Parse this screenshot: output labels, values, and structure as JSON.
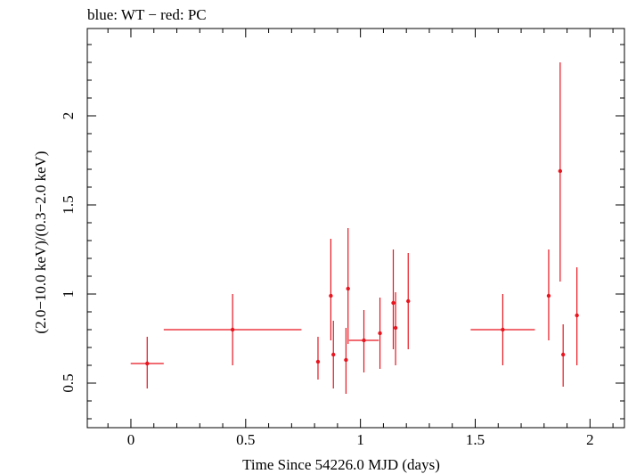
{
  "chart_data": {
    "type": "scatter",
    "title": "blue: WT − red: PC",
    "xlabel": "Time Since 54226.0 MJD (days)",
    "ylabel": "(2.0−10.0 keV)/(0.3−2.0 keV)",
    "xlim": [
      -0.19,
      2.15
    ],
    "ylim": [
      0.25,
      2.49
    ],
    "xticks": [
      0,
      0.5,
      1,
      1.5,
      2
    ],
    "xtick_labels": [
      "0",
      "0.5",
      "1",
      "1.5",
      "2"
    ],
    "yticks": [
      0.5,
      1,
      1.5,
      2
    ],
    "ytick_labels": [
      "0.5",
      "1",
      "1.5",
      "2"
    ],
    "grid": false,
    "colors": {
      "PC": "#e8141e",
      "WT": "#0000ff"
    },
    "series": [
      {
        "name": "PC",
        "points": [
          {
            "x": 0.071,
            "y": 0.61,
            "xerr": 0.072,
            "yerr_lo": 0.14,
            "yerr_hi": 0.15
          },
          {
            "x": 0.443,
            "y": 0.8,
            "xerr": 0.3,
            "yerr_lo": 0.2,
            "yerr_hi": 0.2
          },
          {
            "x": 0.815,
            "y": 0.62,
            "xerr": 0.005,
            "yerr_lo": 0.1,
            "yerr_hi": 0.14
          },
          {
            "x": 0.871,
            "y": 0.99,
            "xerr": 0.005,
            "yerr_lo": 0.25,
            "yerr_hi": 0.32
          },
          {
            "x": 0.882,
            "y": 0.66,
            "xerr": 0.005,
            "yerr_lo": 0.19,
            "yerr_hi": 0.19
          },
          {
            "x": 0.937,
            "y": 0.63,
            "xerr": 0.005,
            "yerr_lo": 0.19,
            "yerr_hi": 0.18
          },
          {
            "x": 0.946,
            "y": 1.03,
            "xerr": 0.005,
            "yerr_lo": 0.31,
            "yerr_hi": 0.34
          },
          {
            "x": 1.015,
            "y": 0.74,
            "xerr": 0.065,
            "yerr_lo": 0.18,
            "yerr_hi": 0.17
          },
          {
            "x": 1.085,
            "y": 0.78,
            "xerr": 0.005,
            "yerr_lo": 0.2,
            "yerr_hi": 0.2
          },
          {
            "x": 1.143,
            "y": 0.95,
            "xerr": 0.005,
            "yerr_lo": 0.26,
            "yerr_hi": 0.3
          },
          {
            "x": 1.153,
            "y": 0.81,
            "xerr": 0.005,
            "yerr_lo": 0.21,
            "yerr_hi": 0.2
          },
          {
            "x": 1.208,
            "y": 0.96,
            "xerr": 0.005,
            "yerr_lo": 0.27,
            "yerr_hi": 0.27
          },
          {
            "x": 1.62,
            "y": 0.8,
            "xerr": 0.14,
            "yerr_lo": 0.2,
            "yerr_hi": 0.2
          },
          {
            "x": 1.82,
            "y": 0.99,
            "xerr": 0.005,
            "yerr_lo": 0.25,
            "yerr_hi": 0.26
          },
          {
            "x": 1.87,
            "y": 1.69,
            "xerr": 0.005,
            "yerr_lo": 0.62,
            "yerr_hi": 0.61
          },
          {
            "x": 1.883,
            "y": 0.66,
            "xerr": 0.005,
            "yerr_lo": 0.18,
            "yerr_hi": 0.17
          },
          {
            "x": 1.943,
            "y": 0.88,
            "xerr": 0.005,
            "yerr_lo": 0.28,
            "yerr_hi": 0.27
          }
        ]
      }
    ]
  }
}
